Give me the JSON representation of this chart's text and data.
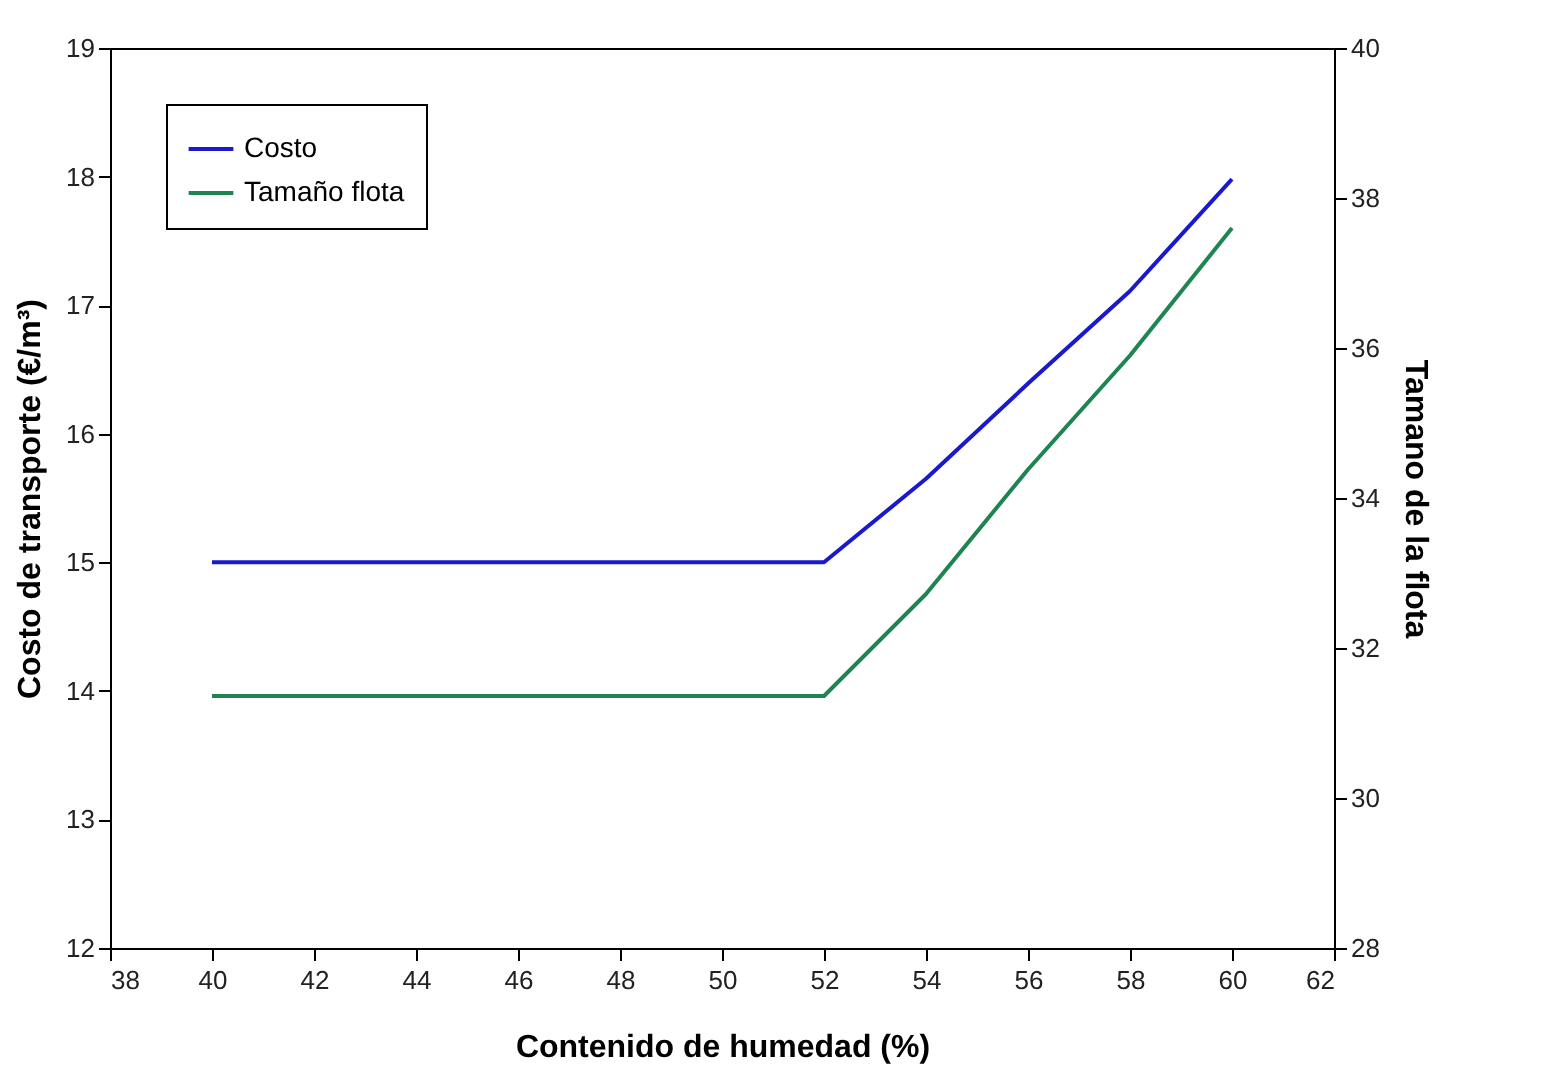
{
  "chart_data": {
    "type": "line",
    "xlabel": "Contenido de humedad (%)",
    "ylabel": "Costo de transporte (€/m³)",
    "y2label": "Tamano de la flota",
    "x": [
      40,
      42,
      44,
      46,
      48,
      50,
      52,
      54,
      56,
      58,
      60
    ],
    "series": [
      {
        "name": "Costo",
        "color": "#1a1acc",
        "values": [
          15,
          15,
          15,
          15,
          15,
          15,
          15,
          15.65,
          16.39,
          17.11,
          17.98
        ]
      },
      {
        "name": "Tamaño flota",
        "color": "#1e8450",
        "axis": "y2",
        "values": [
          31.36,
          31.36,
          31.36,
          31.36,
          31.36,
          31.36,
          31.36,
          32.72,
          34.38,
          35.9,
          37.6
        ]
      }
    ],
    "xlim": [
      38,
      62
    ],
    "xticks": [
      38,
      40,
      42,
      44,
      46,
      48,
      50,
      52,
      54,
      56,
      58,
      60,
      62
    ],
    "ylim": [
      12,
      19
    ],
    "yticks": [
      12,
      13,
      14,
      15,
      16,
      17,
      18,
      19
    ],
    "y2lim": [
      28,
      40
    ],
    "y2ticks": [
      28,
      30,
      32,
      34,
      36,
      38,
      40
    ],
    "legend": "top left"
  }
}
